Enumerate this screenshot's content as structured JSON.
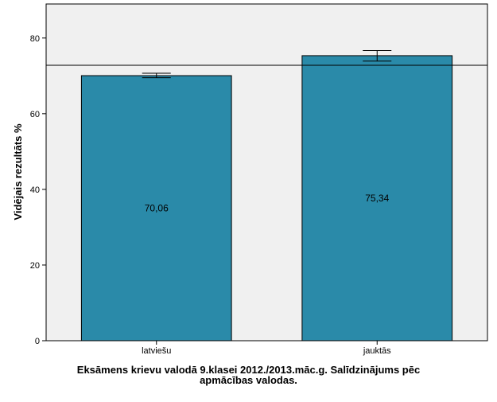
{
  "chart_data": {
    "type": "bar",
    "categories": [
      "latviešu",
      "jauktās"
    ],
    "values": [
      70.06,
      75.34
    ],
    "value_labels": [
      "70,06",
      "75,34"
    ],
    "error_bars": [
      {
        "low": 69.5,
        "high": 70.7
      },
      {
        "low": 73.9,
        "high": 76.7
      }
    ],
    "reference_line": 72.8,
    "ylabel": "Vidējais rezultāts %",
    "xlabel": "",
    "ylim": [
      0,
      89
    ],
    "yticks": [
      0,
      20,
      40,
      60,
      80
    ],
    "grid": false,
    "bar_color": "#2a8aa9",
    "plot_background": "#f0f0f0"
  },
  "caption": {
    "line1": "Eksāmens krievu valodā 9.klasei 2012./2013.māc.g. Salīdzinājums pēc",
    "line2": "apmācības valodas."
  }
}
